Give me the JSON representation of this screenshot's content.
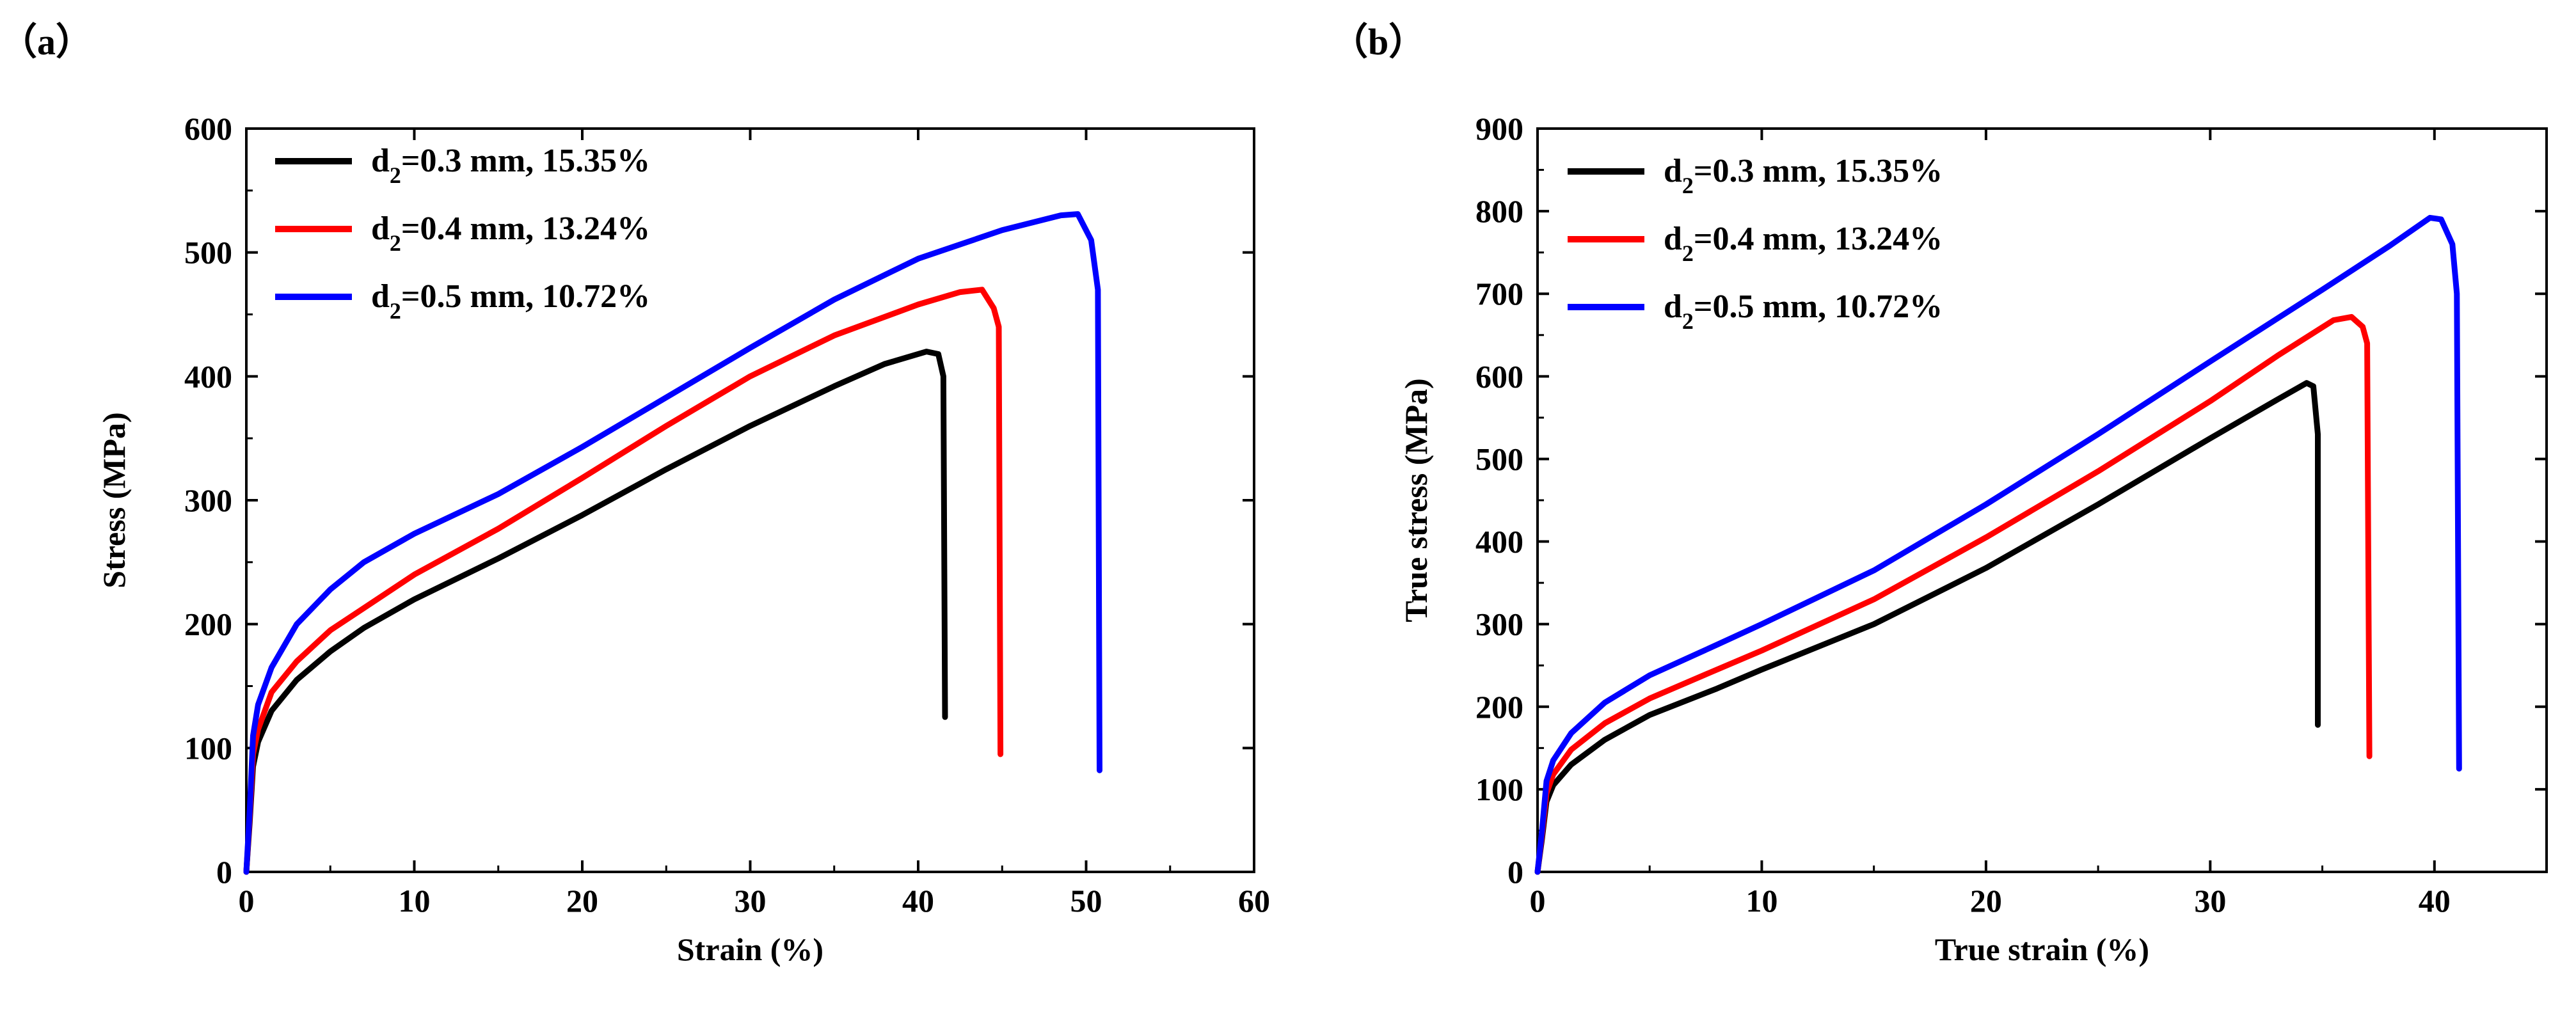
{
  "chart_data": [
    {
      "panel_label": "（a）",
      "type": "line",
      "title": "",
      "xlabel": "Strain (%)",
      "ylabel": "Stress (MPa)",
      "xlim": [
        0,
        60
      ],
      "ylim": [
        0,
        600
      ],
      "xticks": [
        0,
        10,
        20,
        30,
        40,
        50,
        60
      ],
      "yticks": [
        0,
        100,
        200,
        300,
        400,
        500,
        600
      ],
      "legend_position": "top-left",
      "series": [
        {
          "legend": {
            "pre": "d",
            "sub": "2",
            "post": "=0.3 mm, 15.35%"
          },
          "color": "#000000",
          "points": [
            [
              0,
              0
            ],
            [
              0.2,
              40
            ],
            [
              0.4,
              85
            ],
            [
              0.7,
              105
            ],
            [
              1.5,
              130
            ],
            [
              3,
              155
            ],
            [
              5,
              178
            ],
            [
              7,
              197
            ],
            [
              10,
              220
            ],
            [
              15,
              253
            ],
            [
              20,
              288
            ],
            [
              25,
              325
            ],
            [
              30,
              360
            ],
            [
              35,
              392
            ],
            [
              38,
              410
            ],
            [
              40.5,
              420
            ],
            [
              41.2,
              418
            ],
            [
              41.5,
              400
            ],
            [
              41.6,
              125
            ]
          ]
        },
        {
          "legend": {
            "pre": "d",
            "sub": "2",
            "post": "=0.4 mm, 13.24%"
          },
          "color": "#ff0000",
          "points": [
            [
              0,
              0
            ],
            [
              0.2,
              45
            ],
            [
              0.4,
              95
            ],
            [
              0.7,
              115
            ],
            [
              1.5,
              145
            ],
            [
              3,
              170
            ],
            [
              5,
              195
            ],
            [
              7,
              213
            ],
            [
              10,
              240
            ],
            [
              15,
              277
            ],
            [
              20,
              318
            ],
            [
              25,
              360
            ],
            [
              30,
              400
            ],
            [
              35,
              433
            ],
            [
              40,
              458
            ],
            [
              42.5,
              468
            ],
            [
              43.8,
              470
            ],
            [
              44.5,
              455
            ],
            [
              44.8,
              440
            ],
            [
              44.9,
              95
            ]
          ]
        },
        {
          "legend": {
            "pre": "d",
            "sub": "2",
            "post": "=0.5 mm, 10.72%"
          },
          "color": "#0000ff",
          "points": [
            [
              0,
              0
            ],
            [
              0.2,
              50
            ],
            [
              0.4,
              110
            ],
            [
              0.7,
              135
            ],
            [
              1.5,
              165
            ],
            [
              3,
              200
            ],
            [
              5,
              228
            ],
            [
              7,
              250
            ],
            [
              10,
              273
            ],
            [
              15,
              305
            ],
            [
              20,
              343
            ],
            [
              25,
              383
            ],
            [
              30,
              423
            ],
            [
              35,
              462
            ],
            [
              40,
              495
            ],
            [
              45,
              518
            ],
            [
              48.5,
              530
            ],
            [
              49.5,
              531
            ],
            [
              50.3,
              510
            ],
            [
              50.7,
              470
            ],
            [
              50.8,
              82
            ]
          ]
        }
      ]
    },
    {
      "panel_label": "（b）",
      "type": "line",
      "title": "",
      "xlabel": "True strain (%)",
      "ylabel": "True stress (MPa)",
      "xlim": [
        0,
        45
      ],
      "ylim": [
        0,
        900
      ],
      "xticks": [
        0,
        10,
        20,
        30,
        40
      ],
      "yticks": [
        0,
        100,
        200,
        300,
        400,
        500,
        600,
        700,
        800,
        900
      ],
      "legend_position": "top-left",
      "series": [
        {
          "legend": {
            "pre": "d",
            "sub": "2",
            "post": "=0.3 mm, 15.35%"
          },
          "color": "#000000",
          "points": [
            [
              0,
              0
            ],
            [
              0.2,
              40
            ],
            [
              0.4,
              85
            ],
            [
              0.7,
              105
            ],
            [
              1.5,
              130
            ],
            [
              3,
              160
            ],
            [
              5,
              190
            ],
            [
              8,
              222
            ],
            [
              10,
              245
            ],
            [
              15,
              300
            ],
            [
              20,
              368
            ],
            [
              25,
              445
            ],
            [
              30,
              525
            ],
            [
              33,
              572
            ],
            [
              34.3,
              592
            ],
            [
              34.6,
              588
            ],
            [
              34.8,
              530
            ],
            [
              34.8,
              178
            ]
          ]
        },
        {
          "legend": {
            "pre": "d",
            "sub": "2",
            "post": "=0.4 mm, 13.24%"
          },
          "color": "#ff0000",
          "points": [
            [
              0,
              0
            ],
            [
              0.2,
              45
            ],
            [
              0.4,
              95
            ],
            [
              0.7,
              118
            ],
            [
              1.5,
              148
            ],
            [
              3,
              180
            ],
            [
              5,
              210
            ],
            [
              8,
              245
            ],
            [
              10,
              268
            ],
            [
              15,
              330
            ],
            [
              20,
              405
            ],
            [
              25,
              485
            ],
            [
              30,
              570
            ],
            [
              33,
              625
            ],
            [
              35.5,
              668
            ],
            [
              36.3,
              672
            ],
            [
              36.8,
              660
            ],
            [
              37.0,
              640
            ],
            [
              37.1,
              140
            ]
          ]
        },
        {
          "legend": {
            "pre": "d",
            "sub": "2",
            "post": "=0.5 mm, 10.72%"
          },
          "color": "#0000ff",
          "points": [
            [
              0,
              0
            ],
            [
              0.2,
              50
            ],
            [
              0.4,
              110
            ],
            [
              0.7,
              135
            ],
            [
              1.5,
              168
            ],
            [
              3,
              205
            ],
            [
              5,
              238
            ],
            [
              8,
              275
            ],
            [
              10,
              300
            ],
            [
              15,
              365
            ],
            [
              20,
              445
            ],
            [
              25,
              530
            ],
            [
              30,
              618
            ],
            [
              35,
              705
            ],
            [
              38,
              758
            ],
            [
              39.8,
              792
            ],
            [
              40.3,
              790
            ],
            [
              40.8,
              760
            ],
            [
              41.0,
              700
            ],
            [
              41.1,
              125
            ]
          ]
        }
      ]
    }
  ]
}
